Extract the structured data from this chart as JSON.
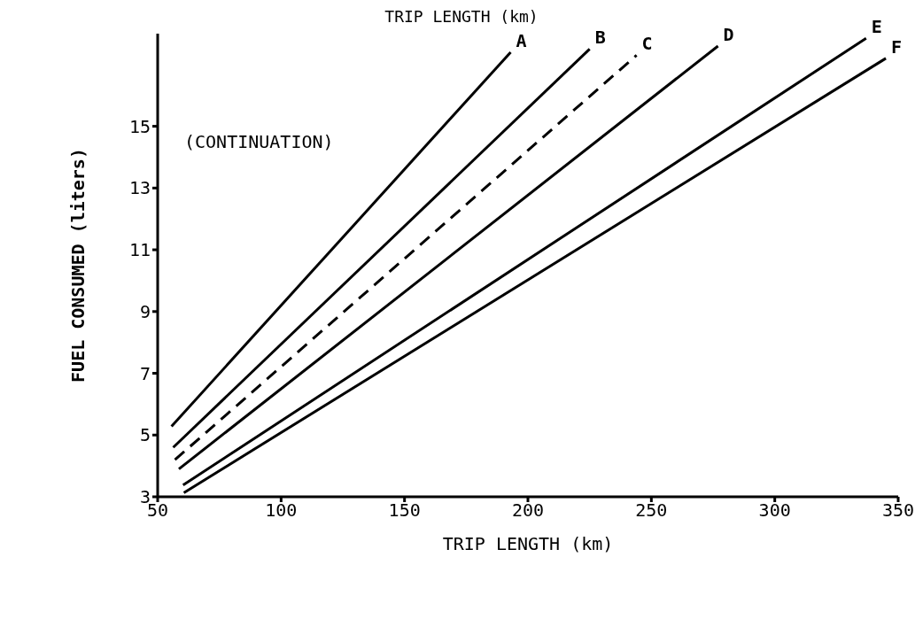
{
  "chart_data": {
    "type": "line",
    "xlabel": "TRIP LENGTH (km)",
    "ylabel": "FUEL CONSUMED (liters)",
    "annotations": [
      "TRIP LENGTH (km)",
      "(CONTINUATION)"
    ],
    "series": [
      {
        "name": "A",
        "color": "#000000",
        "x": [
          55.6,
          193
        ],
        "values": [
          5.28,
          17.4
        ]
      },
      {
        "name": "B",
        "color": "#000000",
        "x": [
          56.3,
          225
        ],
        "values": [
          4.6,
          17.5
        ]
      },
      {
        "name": "C",
        "color": "#000000",
        "line_style": "dashed",
        "x": [
          57,
          244
        ],
        "values": [
          4.2,
          17.3
        ]
      },
      {
        "name": "D",
        "color": "#000000",
        "x": [
          58.6,
          277
        ],
        "values": [
          3.9,
          17.6
        ]
      },
      {
        "name": "E",
        "color": "#000000",
        "x": [
          60.3,
          337
        ],
        "values": [
          3.38,
          17.85
        ]
      },
      {
        "name": "F",
        "color": "#000000",
        "x": [
          60.6,
          345
        ],
        "values": [
          3.13,
          17.2
        ]
      }
    ],
    "xlim": [
      50,
      350
    ],
    "xticks": [
      50,
      100,
      150,
      200,
      250,
      300,
      350
    ],
    "ylim": [
      3,
      18
    ],
    "yticks": [
      3,
      5,
      7,
      9,
      11,
      13,
      15
    ],
    "grid": false,
    "legend": false,
    "marker": "none",
    "line_style": "solid"
  }
}
